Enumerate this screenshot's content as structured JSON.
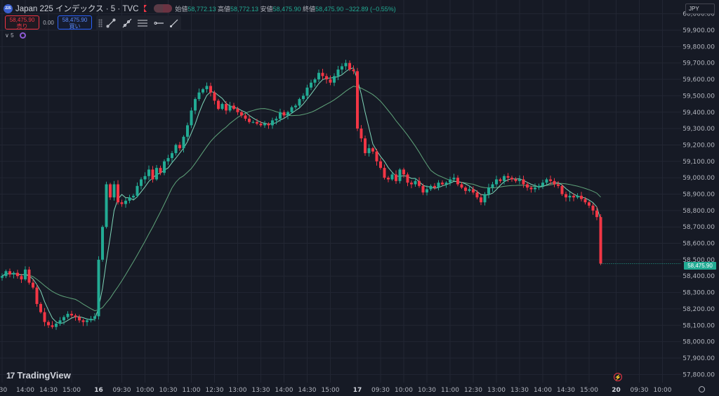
{
  "header": {
    "symbol_icon": "225",
    "title": "Japan 225 インデックス · 5 · TVC",
    "open_label": "始値",
    "open": "58,772.13",
    "high_label": "高値",
    "high": "58,772.13",
    "low_label": "安値",
    "low": "58,475.90",
    "close_label": "終値",
    "close": "58,475.90",
    "change": "−322.89 (−0.55%)"
  },
  "trade": {
    "sell_price": "58,475.90",
    "sell_label": "売り",
    "spread": "0.00",
    "buy_price": "58,475.90",
    "buy_label": "買い"
  },
  "interval": {
    "label": "5"
  },
  "currency": "JPY",
  "current_price": "58,475.90",
  "logo": {
    "text": "TradingView",
    "icon": "17"
  },
  "colors": {
    "up": "#22ab94",
    "down": "#f23645",
    "ma_fast": "#7fd6b9",
    "ma_slow": "#5fa37a",
    "background": "#161a25"
  },
  "icons": [
    "flag-icon",
    "trend-line-icon",
    "ray-icon",
    "parallel-channel-icon",
    "horizontal-ray-icon",
    "brush-icon",
    "settings-icon",
    "lightning-icon",
    "globe-icon"
  ],
  "chart_data": {
    "type": "candlestick",
    "ylim": [
      57750,
      60020
    ],
    "y_ticks": [
      57800,
      57900,
      58000,
      58100,
      58200,
      58300,
      58400,
      58500,
      58600,
      58700,
      58800,
      58900,
      59000,
      59100,
      59200,
      59300,
      59400,
      59500,
      59600,
      59700,
      59800,
      59900,
      60000
    ],
    "y_tick_labels": [
      "57,800.00",
      "57,900.00",
      "58,000.00",
      "58,100.00",
      "58,200.00",
      "58,300.00",
      "58,400.00",
      "58,500.00",
      "58,600.00",
      "58,700.00",
      "58,800.00",
      "58,900.00",
      "59,000.00",
      "59,100.00",
      "59,200.00",
      "59,300.00",
      "59,400.00",
      "59,500.00",
      "59,600.00",
      "59,700.00",
      "59,800.00",
      "59,900.00",
      "60,000.00"
    ],
    "x_ticks": [
      {
        "label": ":30",
        "bar": 0
      },
      {
        "label": "14:00",
        "bar": 6
      },
      {
        "label": "14:30",
        "bar": 12
      },
      {
        "label": "15:00",
        "bar": 18
      },
      {
        "label": "16",
        "bar": 25,
        "bold": true
      },
      {
        "label": "09:30",
        "bar": 31
      },
      {
        "label": "10:00",
        "bar": 37
      },
      {
        "label": "10:30",
        "bar": 43
      },
      {
        "label": "11:00",
        "bar": 49
      },
      {
        "label": "12:30",
        "bar": 55
      },
      {
        "label": "13:00",
        "bar": 61
      },
      {
        "label": "13:30",
        "bar": 67
      },
      {
        "label": "14:00",
        "bar": 73
      },
      {
        "label": "14:30",
        "bar": 79
      },
      {
        "label": "15:00",
        "bar": 85
      },
      {
        "label": "17",
        "bar": 92,
        "bold": true
      },
      {
        "label": "09:30",
        "bar": 98
      },
      {
        "label": "10:00",
        "bar": 104
      },
      {
        "label": "10:30",
        "bar": 110
      },
      {
        "label": "11:00",
        "bar": 116
      },
      {
        "label": "12:30",
        "bar": 122
      },
      {
        "label": "13:00",
        "bar": 128
      },
      {
        "label": "13:30",
        "bar": 134
      },
      {
        "label": "14:00",
        "bar": 140
      },
      {
        "label": "14:30",
        "bar": 146
      },
      {
        "label": "15:00",
        "bar": 152
      },
      {
        "label": "20",
        "bar": 159,
        "bold": true
      },
      {
        "label": "09:30",
        "bar": 165
      },
      {
        "label": "10:00",
        "bar": 171
      }
    ],
    "closes": [
      58400,
      58430,
      58410,
      58420,
      58400,
      58380,
      58440,
      58360,
      58330,
      58230,
      58180,
      58120,
      58100,
      58090,
      58110,
      58130,
      58150,
      58170,
      58160,
      58150,
      58130,
      58120,
      58130,
      58140,
      58155,
      58500,
      58700,
      58960,
      58880,
      58960,
      58850,
      58840,
      58860,
      58880,
      58890,
      58950,
      58990,
      59010,
      59050,
      58990,
      59060,
      59030,
      59100,
      59120,
      59150,
      59200,
      59180,
      59250,
      59320,
      59410,
      59480,
      59520,
      59540,
      59560,
      59520,
      59470,
      59420,
      59450,
      59410,
      59440,
      59420,
      59400,
      59380,
      59360,
      59340,
      59340,
      59330,
      59320,
      59330,
      59320,
      59350,
      59360,
      59400,
      59380,
      59400,
      59430,
      59440,
      59480,
      59500,
      59550,
      59580,
      59600,
      59640,
      59620,
      59600,
      59580,
      59620,
      59660,
      59680,
      59700,
      59660,
      59650,
      59300,
      59240,
      59150,
      59180,
      59160,
      59100,
      59060,
      59000,
      58990,
      59020,
      58980,
      59050,
      59020,
      58970,
      58960,
      58980,
      58950,
      58910,
      58930,
      58950,
      58940,
      58970,
      58960,
      58970,
      58990,
      59000,
      58960,
      58940,
      58920,
      58930,
      58910,
      58880,
      58850,
      58900,
      58940,
      58960,
      58990,
      58980,
      59010,
      59000,
      58990,
      58980,
      58990,
      58960,
      58940,
      58930,
      58940,
      58950,
      58970,
      58990,
      58980,
      58960,
      58950,
      58900,
      58880,
      58890,
      58880,
      58890,
      58870,
      58850,
      58830,
      58800,
      58760,
      58476
    ],
    "bar_spacing": 5.5
  }
}
